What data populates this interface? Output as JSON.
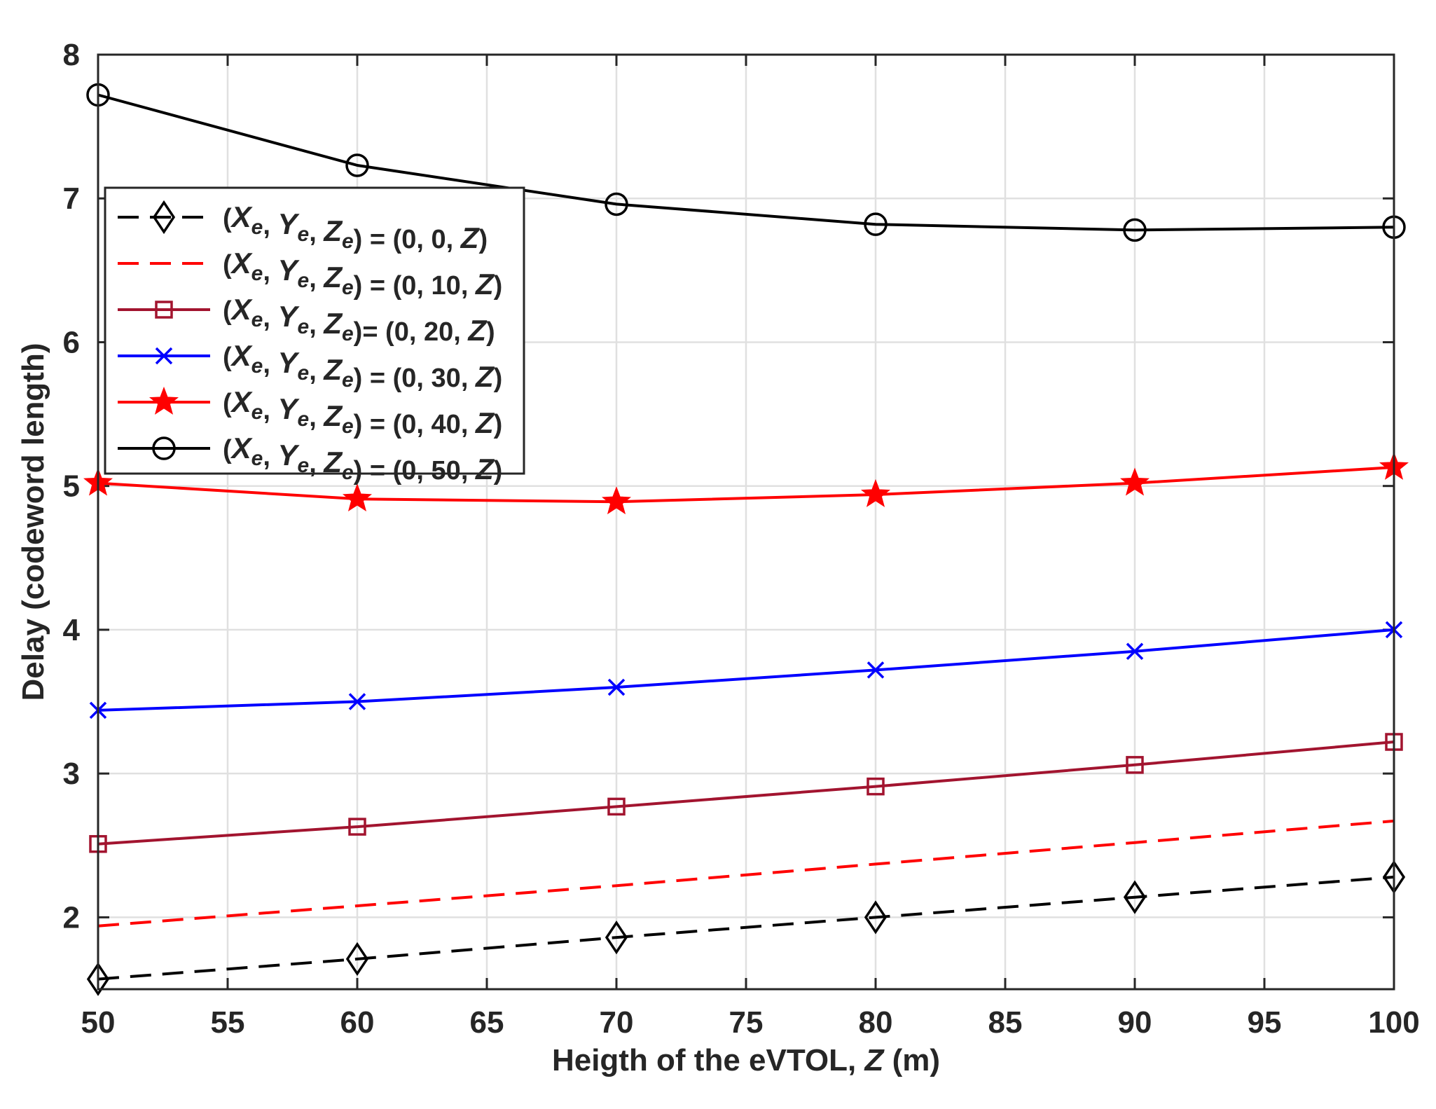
{
  "chart_data": {
    "type": "line",
    "title": "",
    "xlabel": "Heigth of the eVTOL, ",
    "xlabel_var": "Z",
    "xlabel_unit": " (m)",
    "ylabel": "Delay (codeword length)",
    "xlim": [
      50,
      100
    ],
    "ylim": [
      1.5,
      8
    ],
    "xticks": [
      50,
      55,
      60,
      65,
      70,
      75,
      80,
      85,
      90,
      95,
      100
    ],
    "yticks": [
      2,
      3,
      4,
      5,
      6,
      7,
      8
    ],
    "grid": true,
    "legend_position": "upper-left",
    "x": [
      50,
      60,
      70,
      80,
      90,
      100
    ],
    "series": [
      {
        "name": "(Xe, Ye, Ze) = (0, 0, Z)",
        "legend_y": "0",
        "color": "#000000",
        "dash": "dashed",
        "marker": "diamond",
        "values": [
          1.57,
          1.71,
          1.86,
          2.0,
          2.14,
          2.28
        ]
      },
      {
        "name": "(Xe, Ye, Ze) = (0, 10, Z)",
        "legend_y": "10",
        "color": "#ff0000",
        "dash": "dashed",
        "marker": "none",
        "values": [
          1.94,
          2.08,
          2.22,
          2.37,
          2.52,
          2.67
        ]
      },
      {
        "name": "(Xe, Ye, Ze)= (0, 20, Z)",
        "legend_y": "20",
        "legend_tight": true,
        "color": "#a2142f",
        "dash": "solid",
        "marker": "square",
        "values": [
          2.51,
          2.63,
          2.77,
          2.91,
          3.06,
          3.22
        ]
      },
      {
        "name": "(Xe, Ye, Ze) = (0, 30, Z)",
        "legend_y": "30",
        "color": "#0000ff",
        "dash": "solid",
        "marker": "x",
        "values": [
          3.44,
          3.5,
          3.6,
          3.72,
          3.85,
          4.0
        ]
      },
      {
        "name": "(Xe, Ye, Ze) = (0, 40, Z)",
        "legend_y": "40",
        "color": "#ff0000",
        "dash": "solid",
        "marker": "star",
        "values": [
          5.02,
          4.91,
          4.89,
          4.94,
          5.02,
          5.13
        ]
      },
      {
        "name": "(Xe, Ye, Ze) = (0, 50, Z)",
        "legend_y": "50",
        "color": "#000000",
        "dash": "solid",
        "marker": "circle",
        "values": [
          7.72,
          7.23,
          6.96,
          6.82,
          6.78,
          6.8
        ]
      }
    ]
  }
}
